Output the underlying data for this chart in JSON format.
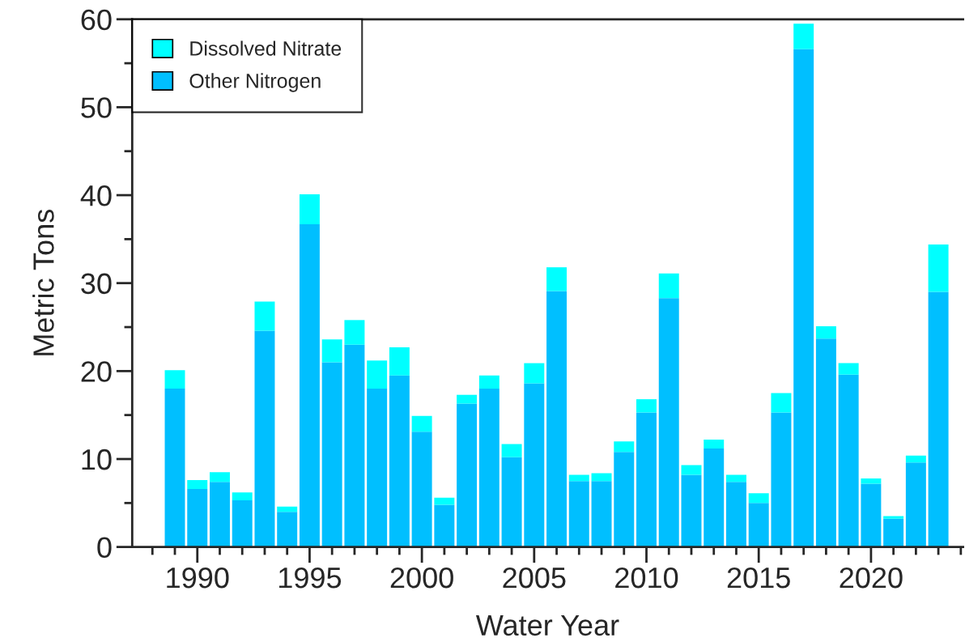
{
  "chart_data": {
    "type": "bar",
    "stacked": true,
    "xlabel": "Water Year",
    "ylabel": "Metric Tons",
    "x": [
      1989,
      1990,
      1991,
      1992,
      1993,
      1994,
      1995,
      1996,
      1997,
      1998,
      1999,
      2000,
      2001,
      2002,
      2003,
      2004,
      2005,
      2006,
      2007,
      2008,
      2009,
      2010,
      2011,
      2012,
      2013,
      2014,
      2015,
      2016,
      2017,
      2018,
      2019,
      2020,
      2021,
      2022,
      2023
    ],
    "series": [
      {
        "name": "Other Nitrogen",
        "color": "#00bfff",
        "values": [
          18.0,
          6.6,
          7.4,
          5.3,
          24.6,
          4.0,
          36.7,
          21.0,
          23.0,
          18.0,
          19.5,
          13.1,
          4.8,
          16.3,
          18.0,
          10.2,
          18.6,
          29.1,
          7.5,
          7.5,
          10.8,
          15.3,
          28.3,
          8.2,
          11.2,
          7.4,
          5.0,
          15.3,
          56.6,
          23.7,
          19.6,
          7.2,
          3.2,
          9.6,
          29.0
        ]
      },
      {
        "name": "Dissolved Nitrate",
        "color": "#00ffff",
        "values": [
          2.1,
          1.0,
          1.1,
          0.9,
          3.3,
          0.6,
          3.4,
          2.6,
          2.8,
          3.2,
          3.2,
          1.8,
          0.8,
          1.0,
          1.5,
          1.5,
          2.3,
          2.7,
          0.7,
          0.9,
          1.2,
          1.5,
          2.8,
          1.1,
          1.0,
          0.8,
          1.1,
          2.2,
          2.9,
          1.4,
          1.3,
          0.6,
          0.3,
          0.8,
          5.4
        ]
      }
    ],
    "xlim": [
      1987.1,
      2024.1
    ],
    "xticks": [
      {
        "value": 1988,
        "label": null
      },
      {
        "value": 1989,
        "label": null
      },
      1990,
      {
        "value": 1991,
        "label": null
      },
      {
        "value": 1992,
        "label": null
      },
      {
        "value": 1993,
        "label": null
      },
      {
        "value": 1994,
        "label": null
      },
      1995,
      {
        "value": 1996,
        "label": null
      },
      {
        "value": 1997,
        "label": null
      },
      {
        "value": 1998,
        "label": null
      },
      {
        "value": 1999,
        "label": null
      },
      2000,
      {
        "value": 2001,
        "label": null
      },
      {
        "value": 2002,
        "label": null
      },
      {
        "value": 2003,
        "label": null
      },
      {
        "value": 2004,
        "label": null
      },
      2005,
      {
        "value": 2006,
        "label": null
      },
      {
        "value": 2007,
        "label": null
      },
      {
        "value": 2008,
        "label": null
      },
      {
        "value": 2009,
        "label": null
      },
      2010,
      {
        "value": 2011,
        "label": null
      },
      {
        "value": 2012,
        "label": null
      },
      {
        "value": 2013,
        "label": null
      },
      {
        "value": 2014,
        "label": null
      },
      2015,
      {
        "value": 2016,
        "label": null
      },
      {
        "value": 2017,
        "label": null
      },
      {
        "value": 2018,
        "label": null
      },
      {
        "value": 2019,
        "label": null
      },
      2020,
      {
        "value": 2021,
        "label": null
      },
      {
        "value": 2022,
        "label": null
      },
      {
        "value": 2023,
        "label": null
      },
      {
        "value": 2024,
        "label": null
      }
    ],
    "ylim": [
      0,
      60
    ],
    "yticks": [
      0,
      {
        "value": 5,
        "label": null
      },
      10,
      {
        "value": 15,
        "label": null
      },
      20,
      {
        "value": 25,
        "label": null
      },
      30,
      {
        "value": 35,
        "label": null
      },
      40,
      {
        "value": 45,
        "label": null
      },
      50,
      {
        "value": 55,
        "label": null
      },
      60
    ],
    "grid": false,
    "legend": "top left"
  }
}
